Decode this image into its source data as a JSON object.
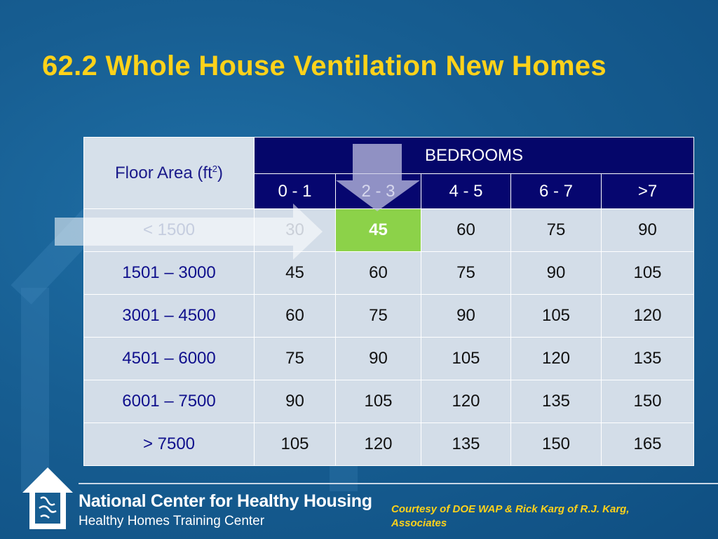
{
  "slide": {
    "title": "62.2 Whole House Ventilation New Homes"
  },
  "table": {
    "corner_label": "Floor Area (ft",
    "corner_sup": "2",
    "corner_close": ")",
    "group_header": "BEDROOMS",
    "columns": [
      "0 - 1",
      "2 - 3",
      "4 - 5",
      "6 - 7",
      ">7"
    ],
    "rows": [
      {
        "label": "< 1500",
        "values": [
          "30",
          "45",
          "60",
          "75",
          "90"
        ]
      },
      {
        "label": "1501 – 3000",
        "values": [
          "45",
          "60",
          "75",
          "90",
          "105"
        ]
      },
      {
        "label": "3001 – 4500",
        "values": [
          "60",
          "75",
          "90",
          "105",
          "120"
        ]
      },
      {
        "label": "4501 – 6000",
        "values": [
          "75",
          "90",
          "105",
          "120",
          "135"
        ]
      },
      {
        "label": "6001 – 7500",
        "values": [
          "90",
          "105",
          "120",
          "135",
          "150"
        ]
      },
      {
        "label": "> 7500",
        "values": [
          "105",
          "120",
          "135",
          "150",
          "165"
        ]
      }
    ],
    "highlight_color": "#8cd249",
    "header_color": "#06066f"
  },
  "footer": {
    "org_name": "National Center for Healthy Housing",
    "org_sub": "Healthy Homes Training Center",
    "credit": "Courtesy of DOE WAP & Rick Karg of R.J. Karg, Associates",
    "logo_icon": "house-logo-icon"
  },
  "colors": {
    "title": "#ffd21a",
    "background": "#175e92"
  }
}
